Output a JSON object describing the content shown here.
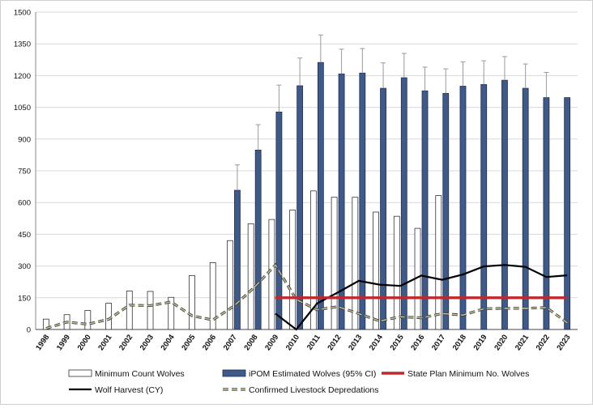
{
  "chart_data": {
    "type": "bar",
    "ylim": [
      0,
      1500
    ],
    "yticks": [
      0,
      150,
      300,
      450,
      600,
      750,
      900,
      1050,
      1200,
      1350,
      1500
    ],
    "grid": true,
    "legend_position": "bottom",
    "categories": [
      "1998",
      "1999",
      "2000",
      "2001",
      "2002",
      "2003",
      "2004",
      "2005",
      "2006",
      "2007",
      "2008",
      "2009",
      "2010",
      "2011",
      "2012",
      "2013",
      "2014",
      "2015",
      "2016",
      "2017",
      "2018",
      "2019",
      "2020",
      "2021",
      "2022",
      "2023"
    ],
    "series": [
      {
        "name": "Minimum Count Wolves",
        "kind": "bar",
        "color": "#ffffff",
        "values": [
          49,
          70,
          90,
          124,
          182,
          180,
          152,
          255,
          316,
          420,
          500,
          520,
          565,
          655,
          625,
          625,
          555,
          535,
          478,
          633,
          null,
          null,
          null,
          null,
          null,
          null
        ]
      },
      {
        "name": "iPOM Estimated Wolves (95% CI)",
        "kind": "bar",
        "color": "#3d5a8a",
        "values": [
          null,
          null,
          null,
          null,
          null,
          null,
          null,
          null,
          null,
          658,
          848,
          1028,
          1152,
          1262,
          1208,
          1212,
          1140,
          1190,
          1128,
          1116,
          1150,
          1158,
          1178,
          1140,
          1096,
          1096
        ],
        "error_upper": [
          null,
          null,
          null,
          null,
          null,
          null,
          null,
          null,
          null,
          778,
          968,
          1155,
          1283,
          1392,
          1325,
          1328,
          1260,
          1305,
          1240,
          1232,
          1265,
          1270,
          1290,
          1255,
          1215,
          null
        ]
      },
      {
        "name": "State Plan Minimum No. Wolves",
        "kind": "line",
        "color": "#c0282d",
        "values": [
          null,
          null,
          null,
          null,
          null,
          null,
          null,
          null,
          null,
          null,
          null,
          150,
          150,
          150,
          150,
          150,
          150,
          150,
          150,
          150,
          150,
          150,
          150,
          150,
          150,
          150
        ]
      },
      {
        "name": "Wolf Harvest (CY)",
        "kind": "line",
        "color": "#000000",
        "values": [
          null,
          null,
          null,
          null,
          null,
          null,
          null,
          null,
          null,
          null,
          null,
          75,
          0,
          123,
          175,
          230,
          212,
          206,
          255,
          235,
          260,
          298,
          305,
          296,
          248,
          256
        ]
      },
      {
        "name": "Confirmed Livestock Depredations",
        "kind": "dashed-line",
        "color": "#5a5a42",
        "values": [
          5,
          35,
          25,
          48,
          115,
          113,
          130,
          65,
          45,
          110,
          200,
          305,
          142,
          93,
          108,
          75,
          40,
          60,
          55,
          75,
          68,
          98,
          100,
          100,
          104,
          32
        ]
      }
    ]
  }
}
